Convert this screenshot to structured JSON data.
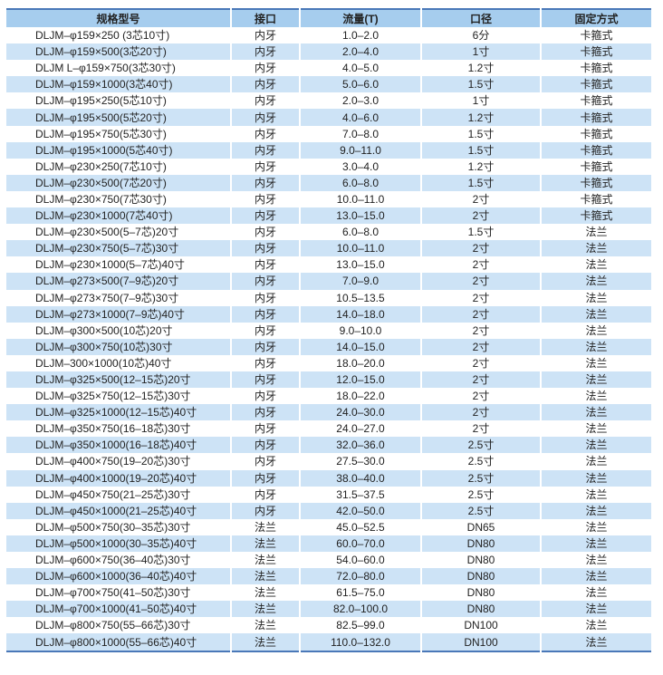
{
  "table": {
    "headers": [
      "规格型号",
      "接口",
      "流量(T)",
      "口径",
      "固定方式"
    ],
    "rows": [
      [
        "DLJM–φ159×250 (3芯10寸)",
        "内牙",
        "1.0–2.0",
        "6分",
        "卡箍式"
      ],
      [
        "DLJM–φ159×500(3芯20寸)",
        "内牙",
        "2.0–4.0",
        "1寸",
        "卡箍式"
      ],
      [
        "DLJM L–φ159×750(3芯30寸)",
        "内牙",
        "4.0–5.0",
        "1.2寸",
        "卡箍式"
      ],
      [
        "DLJM–φ159×1000(3芯40寸)",
        "内牙",
        "5.0–6.0",
        "1.5寸",
        "卡箍式"
      ],
      [
        "DLJM–φ195×250(5芯10寸)",
        "内牙",
        "2.0–3.0",
        "1寸",
        "卡箍式"
      ],
      [
        "DLJM–φ195×500(5芯20寸)",
        "内牙",
        "4.0–6.0",
        "1.2寸",
        "卡箍式"
      ],
      [
        "DLJM–φ195×750(5芯30寸)",
        "内牙",
        "7.0–8.0",
        "1.5寸",
        "卡箍式"
      ],
      [
        "DLJM–φ195×1000(5芯40寸)",
        "内牙",
        "9.0–11.0",
        "1.5寸",
        "卡箍式"
      ],
      [
        "DLJM–φ230×250(7芯10寸)",
        "内牙",
        "3.0–4.0",
        "1.2寸",
        "卡箍式"
      ],
      [
        "DLJM–φ230×500(7芯20寸)",
        "内牙",
        "6.0–8.0",
        "1.5寸",
        "卡箍式"
      ],
      [
        "DLJM–φ230×750(7芯30寸)",
        "内牙",
        "10.0–11.0",
        "2寸",
        "卡箍式"
      ],
      [
        "DLJM–φ230×1000(7芯40寸)",
        "内牙",
        "13.0–15.0",
        "2寸",
        "卡箍式"
      ],
      [
        "DLJM–φ230×500(5–7芯)20寸",
        "内牙",
        "6.0–8.0",
        "1.5寸",
        "法兰"
      ],
      [
        "DLJM–φ230×750(5–7芯)30寸",
        "内牙",
        "10.0–11.0",
        "2寸",
        "法兰"
      ],
      [
        "DLJM–φ230×1000(5–7芯)40寸",
        "内牙",
        "13.0–15.0",
        "2寸",
        "法兰"
      ],
      [
        "DLJM–φ273×500(7–9芯)20寸",
        "内牙",
        "7.0–9.0",
        "2寸",
        "法兰"
      ],
      [
        "DLJM–φ273×750(7–9芯)30寸",
        "内牙",
        "10.5–13.5",
        "2寸",
        "法兰"
      ],
      [
        "DLJM–φ273×1000(7–9芯)40寸",
        "内牙",
        "14.0–18.0",
        "2寸",
        "法兰"
      ],
      [
        "DLJM–φ300×500(10芯)20寸",
        "内牙",
        "9.0–10.0",
        "2寸",
        "法兰"
      ],
      [
        "DLJM–φ300×750(10芯)30寸",
        "内牙",
        "14.0–15.0",
        "2寸",
        "法兰"
      ],
      [
        "DLJM–300×1000(10芯)40寸",
        "内牙",
        "18.0–20.0",
        "2寸",
        "法兰"
      ],
      [
        "DLJM–φ325×500(12–15芯)20寸",
        "内牙",
        "12.0–15.0",
        "2寸",
        "法兰"
      ],
      [
        "DLJM–φ325×750(12–15芯)30寸",
        "内牙",
        "18.0–22.0",
        "2寸",
        "法兰"
      ],
      [
        "DLJM–φ325×1000(12–15芯)40寸",
        "内牙",
        "24.0–30.0",
        "2寸",
        "法兰"
      ],
      [
        "DLJM–φ350×750(16–18芯)30寸",
        "内牙",
        "24.0–27.0",
        "2寸",
        "法兰"
      ],
      [
        "DLJM–φ350×1000(16–18芯)40寸",
        "内牙",
        "32.0–36.0",
        "2.5寸",
        "法兰"
      ],
      [
        "DLJM–φ400×750(19–20芯)30寸",
        "内牙",
        "27.5–30.0",
        "2.5寸",
        "法兰"
      ],
      [
        "DLJM–φ400×1000(19–20芯)40寸",
        "内牙",
        "38.0–40.0",
        "2.5寸",
        "法兰"
      ],
      [
        "DLJM–φ450×750(21–25芯)30寸",
        "内牙",
        "31.5–37.5",
        "2.5寸",
        "法兰"
      ],
      [
        "DLJM–φ450×1000(21–25芯)40寸",
        "内牙",
        "42.0–50.0",
        "2.5寸",
        "法兰"
      ],
      [
        "DLJM–φ500×750(30–35芯)30寸",
        "法兰",
        "45.0–52.5",
        "DN65",
        "法兰"
      ],
      [
        "DLJM–φ500×1000(30–35芯)40寸",
        "法兰",
        "60.0–70.0",
        "DN80",
        "法兰"
      ],
      [
        "DLJM–φ600×750(36–40芯)30寸",
        "法兰",
        "54.0–60.0",
        "DN80",
        "法兰"
      ],
      [
        "DLJM–φ600×1000(36–40芯)40寸",
        "法兰",
        "72.0–80.0",
        "DN80",
        "法兰"
      ],
      [
        "DLJM–φ700×750(41–50芯)30寸",
        "法兰",
        "61.5–75.0",
        "DN80",
        "法兰"
      ],
      [
        "DLJM–φ700×1000(41–50芯)40寸",
        "法兰",
        "82.0–100.0",
        "DN80",
        "法兰"
      ],
      [
        "DLJM–φ800×750(55–66芯)30寸",
        "法兰",
        "82.5–99.0",
        "DN100",
        "法兰"
      ],
      [
        "DLJM–φ800×1000(55–66芯)40寸",
        "法兰",
        "110.0–132.0",
        "DN100",
        "法兰"
      ]
    ]
  },
  "colors": {
    "header_bg": "#a6cdee",
    "stripe_bg": "#cde3f6",
    "rule": "#4a78b8"
  }
}
